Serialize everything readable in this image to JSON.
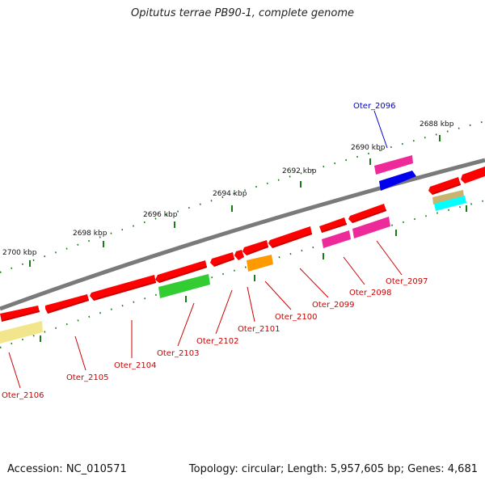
{
  "title": "Opitutus terrae PB90-1, complete genome",
  "footer": {
    "accession": "Accession: NC_010571",
    "topology": "Topology: circular; Length: 5,957,605 bp; Genes: 4,681"
  },
  "ticks": [
    "2688 kbp",
    "2690 kbp",
    "2692 kbp",
    "2694 kbp",
    "2696 kbp",
    "2698 kbp",
    "2700 kbp"
  ],
  "gene_labels": [
    "Oter_2096",
    "Oter_2097",
    "Oter_2098",
    "Oter_2099",
    "Oter_2100",
    "Oter_2101",
    "Oter_2102",
    "Oter_2103",
    "Oter_2104",
    "Oter_2105",
    "Oter_2106"
  ],
  "colors": {
    "backbone": "#7a7a7a",
    "cds": "#ff0000",
    "highlight_label": "#0000cc",
    "label": "#cc0000",
    "tick": "#1a7a1a",
    "magenta": "#ee2a9a",
    "blue": "#0000ee",
    "green": "#33cc33",
    "orange": "#ff9900",
    "khaki": "#c8b46e",
    "cyan": "#00ffff",
    "paleyellow": "#f2e68c"
  }
}
